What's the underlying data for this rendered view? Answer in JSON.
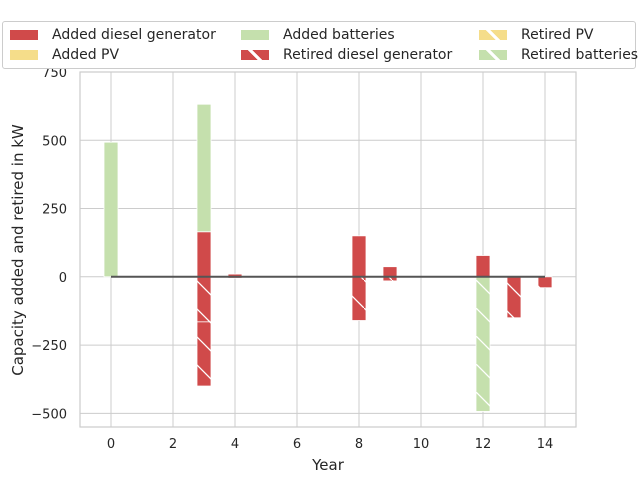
{
  "chart_data": {
    "type": "bar",
    "xlabel": "Year",
    "ylabel": "Capacity added and retired in kW",
    "xlim": [
      -1,
      15
    ],
    "ylim": [
      -550,
      750
    ],
    "xticks": [
      0,
      2,
      4,
      6,
      8,
      10,
      12,
      14
    ],
    "yticks": [
      -500,
      -250,
      0,
      250,
      500,
      750
    ],
    "xtick_labels": [
      "0",
      "2",
      "4",
      "6",
      "8",
      "10",
      "12",
      "14"
    ],
    "ytick_labels": [
      "−500",
      "−250",
      "0",
      "250",
      "500",
      "750"
    ],
    "grid": true,
    "legend_position": "top",
    "colors": {
      "diesel": "#d04a4a",
      "pv": "#f5dd8a",
      "batteries": "#c5e0ad",
      "zero_line": "#555555",
      "grid": "#cccccc"
    },
    "legend": [
      {
        "label": "Added diesel generator",
        "series": "diesel",
        "hatched": false
      },
      {
        "label": "Added PV",
        "series": "pv",
        "hatched": false
      },
      {
        "label": "Added batteries",
        "series": "batteries",
        "hatched": false
      },
      {
        "label": "Retired diesel generator",
        "series": "diesel",
        "hatched": true
      },
      {
        "label": "Retired PV",
        "series": "pv",
        "hatched": true
      },
      {
        "label": "Retired batteries",
        "series": "batteries",
        "hatched": true
      }
    ],
    "bars": [
      {
        "year": 0,
        "series": "batteries",
        "kind": "added",
        "bottom": 0,
        "value": 493
      },
      {
        "year": 3,
        "series": "diesel",
        "kind": "added",
        "bottom": 0,
        "value": 165
      },
      {
        "year": 3,
        "series": "batteries",
        "kind": "added",
        "bottom": 165,
        "value": 467
      },
      {
        "year": 3,
        "series": "diesel",
        "kind": "retired",
        "bottom": 0,
        "value": -165
      },
      {
        "year": 3,
        "series": "diesel",
        "kind": "retired",
        "bottom": -165,
        "value": -235
      },
      {
        "year": 4,
        "series": "diesel",
        "kind": "added",
        "bottom": 0,
        "value": 10
      },
      {
        "year": 4,
        "series": "diesel",
        "kind": "retired",
        "bottom": 0,
        "value": -5
      },
      {
        "year": 8,
        "series": "diesel",
        "kind": "added",
        "bottom": 0,
        "value": 150
      },
      {
        "year": 8,
        "series": "diesel",
        "kind": "retired",
        "bottom": 0,
        "value": -160
      },
      {
        "year": 9,
        "series": "diesel",
        "kind": "added",
        "bottom": 0,
        "value": 37
      },
      {
        "year": 9,
        "series": "diesel",
        "kind": "retired",
        "bottom": 0,
        "value": -15
      },
      {
        "year": 12,
        "series": "diesel",
        "kind": "added",
        "bottom": 0,
        "value": 78
      },
      {
        "year": 12,
        "series": "batteries",
        "kind": "retired",
        "bottom": 0,
        "value": -493
      },
      {
        "year": 13,
        "series": "diesel",
        "kind": "retired",
        "bottom": 0,
        "value": -150
      },
      {
        "year": 14,
        "series": "diesel",
        "kind": "retired",
        "bottom": 0,
        "value": -40
      }
    ]
  }
}
